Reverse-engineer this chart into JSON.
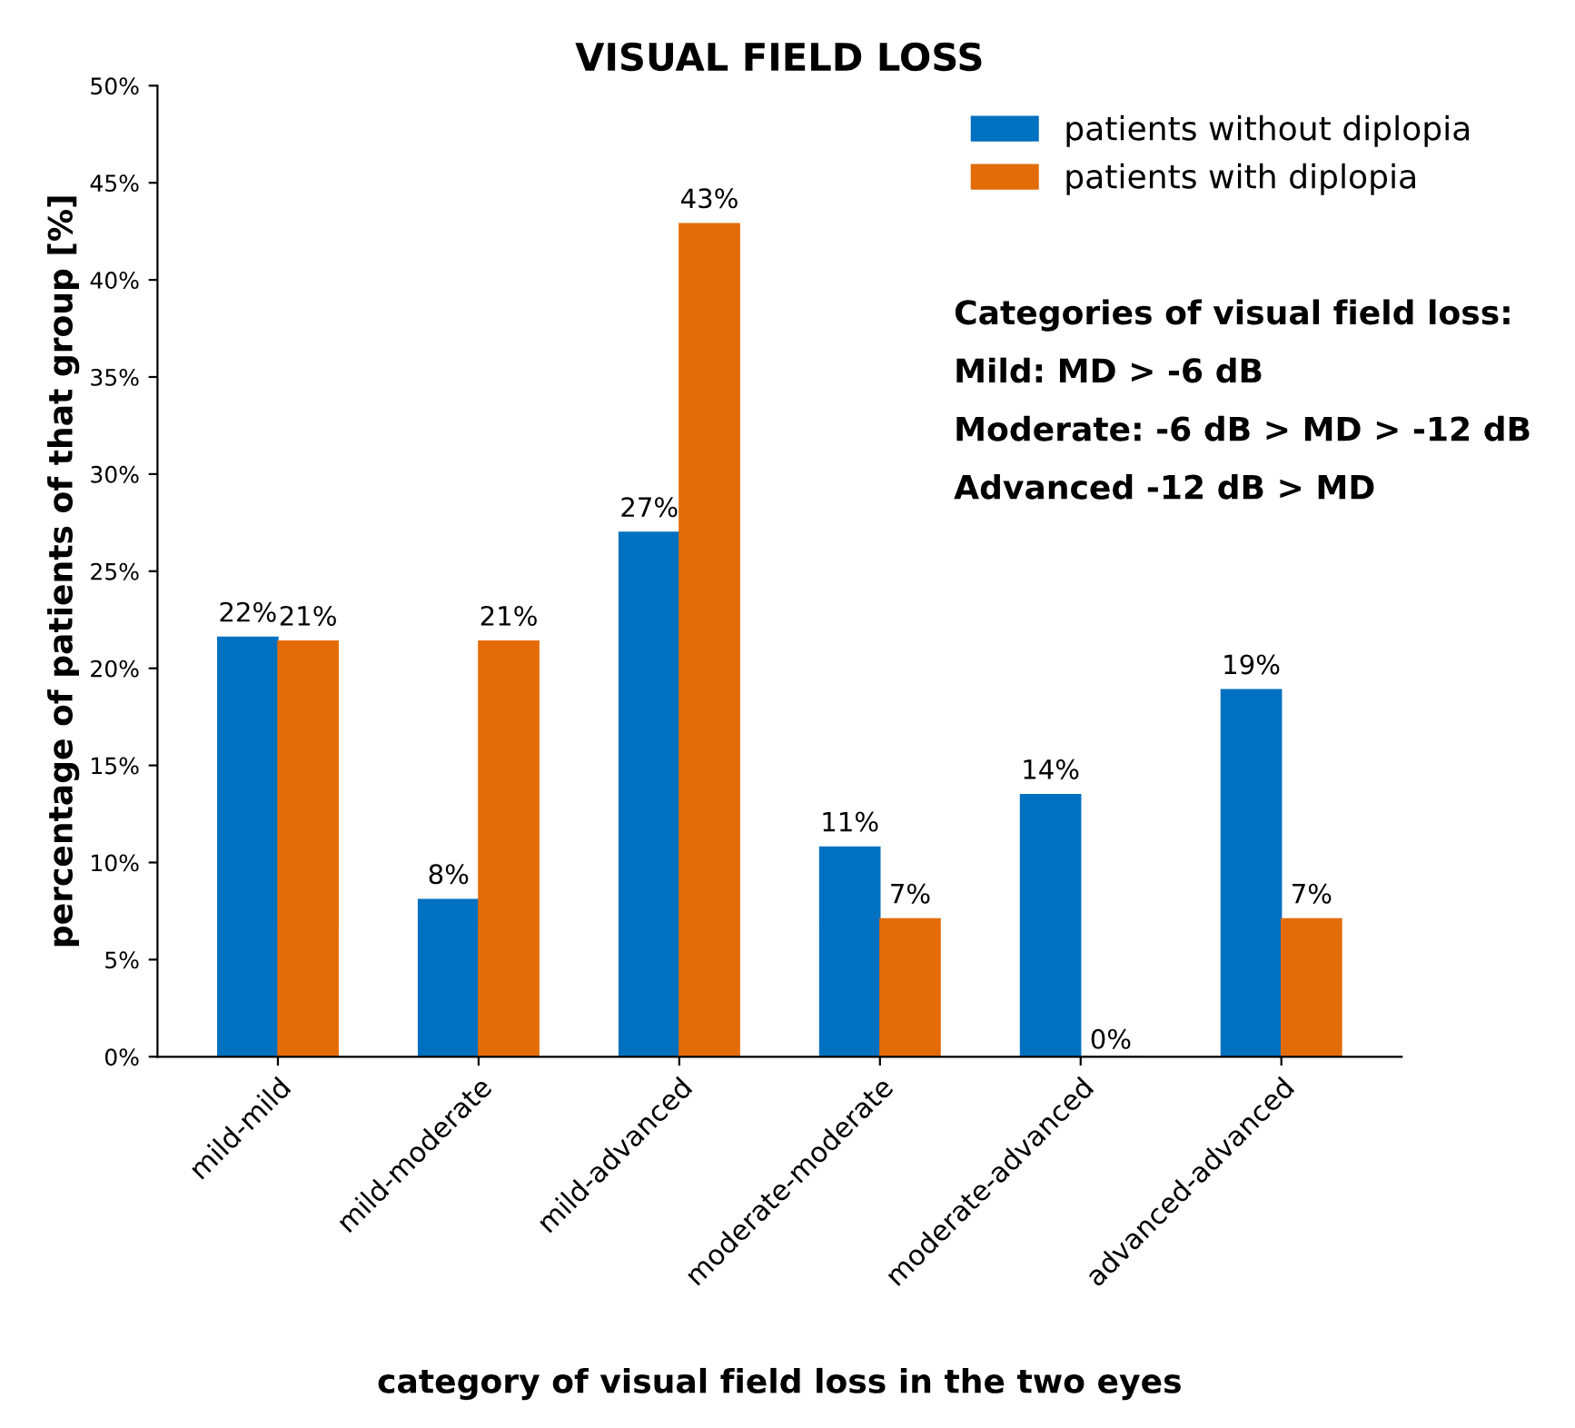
{
  "chart_data": {
    "type": "bar",
    "title": "VISUAL FIELD LOSS",
    "xlabel": "category of visual field loss in the two eyes",
    "ylabel": "percentage of patients of that group [%]",
    "categories": [
      "mild-mild",
      "mild-moderate",
      "mild-advanced",
      "moderate-moderate",
      "moderate-advanced",
      "advanced-advanced"
    ],
    "series": [
      {
        "name": "patients without diplopia",
        "color": "#0070c0",
        "values": [
          21.6,
          8.1,
          27.0,
          10.8,
          13.5,
          18.9
        ],
        "value_labels": [
          "22%",
          "8%",
          "27%",
          "11%",
          "14%",
          "19%"
        ]
      },
      {
        "name": "patients with diplopia",
        "color": "#e36c09",
        "values": [
          21.4,
          21.4,
          42.9,
          7.1,
          0,
          7.1
        ],
        "value_labels": [
          "21%",
          "21%",
          "43%",
          "7%",
          "0%",
          "7%"
        ]
      }
    ],
    "ylim": [
      0,
      50
    ],
    "yticks": [
      {
        "value": 0,
        "label": "0%"
      },
      {
        "value": 5,
        "label": "5%"
      },
      {
        "value": 10,
        "label": "10%"
      },
      {
        "value": 15,
        "label": "15%"
      },
      {
        "value": 20,
        "label": "20%"
      },
      {
        "value": 25,
        "label": "25%"
      },
      {
        "value": 30,
        "label": "30%"
      },
      {
        "value": 35,
        "label": "35%"
      },
      {
        "value": 40,
        "label": "40%"
      },
      {
        "value": 45,
        "label": "45%"
      },
      {
        "value": 50,
        "label": "50%"
      }
    ],
    "annotations": [
      "Categories of visual field loss:",
      "Mild: MD > -6 dB",
      "Moderate: -6 dB > MD > -12 dB",
      "Advanced -12 dB > MD"
    ],
    "legend": "top right",
    "grid": false
  }
}
